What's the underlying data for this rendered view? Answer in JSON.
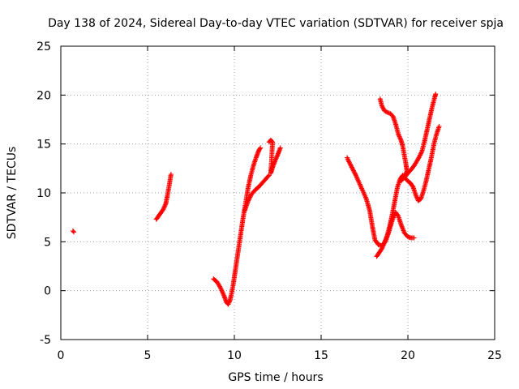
{
  "chart_data": {
    "type": "scatter",
    "title": "Day 138 of 2024, Sidereal Day-to-day VTEC variation (SDTVAR) for receiver spja",
    "xlabel": "GPS time / hours",
    "ylabel": "SDTVAR / TECUs",
    "xlim": [
      0,
      25
    ],
    "ylim": [
      -5,
      25
    ],
    "xticks": [
      0,
      5,
      10,
      15,
      20,
      25
    ],
    "yticks": [
      -5,
      0,
      5,
      10,
      15,
      20,
      25
    ],
    "grid": true,
    "marker": "plus",
    "color": "#ff0000",
    "series": [
      {
        "values": [
          [
            0.7,
            6.1
          ],
          [
            0.75,
            6.0
          ],
          [
            5.5,
            7.3
          ],
          [
            5.7,
            7.8
          ],
          [
            5.9,
            8.3
          ],
          [
            6.05,
            8.9
          ],
          [
            6.15,
            9.8
          ],
          [
            6.25,
            10.8
          ],
          [
            6.35,
            11.9
          ],
          [
            8.8,
            1.2
          ],
          [
            9.0,
            0.9
          ],
          [
            9.2,
            0.3
          ],
          [
            9.4,
            -0.5
          ],
          [
            9.55,
            -1.2
          ],
          [
            9.65,
            -1.4
          ],
          [
            9.75,
            -1.0
          ],
          [
            9.85,
            -0.2
          ],
          [
            9.95,
            0.8
          ],
          [
            10.05,
            2.0
          ],
          [
            10.2,
            3.8
          ],
          [
            10.35,
            5.6
          ],
          [
            10.5,
            7.4
          ],
          [
            10.65,
            9.0
          ],
          [
            10.8,
            10.6
          ],
          [
            10.95,
            11.8
          ],
          [
            11.1,
            12.8
          ],
          [
            11.25,
            13.6
          ],
          [
            11.4,
            14.3
          ],
          [
            11.5,
            14.6
          ],
          [
            10.6,
            8.2
          ],
          [
            10.8,
            9.2
          ],
          [
            11.0,
            9.9
          ],
          [
            11.2,
            10.3
          ],
          [
            11.4,
            10.6
          ],
          [
            11.6,
            11.0
          ],
          [
            11.8,
            11.4
          ],
          [
            12.0,
            11.8
          ],
          [
            12.0,
            15.2
          ],
          [
            12.1,
            15.4
          ],
          [
            12.2,
            15.2
          ],
          [
            12.1,
            12.0
          ],
          [
            12.2,
            12.6
          ],
          [
            12.35,
            13.3
          ],
          [
            12.5,
            13.9
          ],
          [
            12.65,
            14.6
          ],
          [
            16.5,
            13.6
          ],
          [
            16.6,
            13.2
          ],
          [
            16.8,
            12.5
          ],
          [
            17.0,
            11.8
          ],
          [
            17.2,
            11.0
          ],
          [
            17.4,
            10.2
          ],
          [
            17.6,
            9.4
          ],
          [
            17.8,
            8.2
          ],
          [
            17.95,
            6.6
          ],
          [
            18.1,
            5.2
          ],
          [
            18.3,
            4.7
          ],
          [
            18.5,
            4.6
          ],
          [
            18.7,
            5.0
          ],
          [
            18.9,
            6.0
          ],
          [
            19.1,
            7.2
          ],
          [
            19.3,
            8.0
          ],
          [
            19.45,
            7.6
          ],
          [
            19.6,
            6.8
          ],
          [
            19.8,
            5.9
          ],
          [
            20.0,
            5.5
          ],
          [
            20.2,
            5.4
          ],
          [
            20.35,
            5.4
          ],
          [
            18.2,
            3.5
          ],
          [
            18.35,
            3.9
          ],
          [
            18.5,
            4.3
          ],
          [
            18.65,
            4.9
          ],
          [
            18.8,
            5.6
          ],
          [
            18.95,
            6.6
          ],
          [
            19.1,
            7.8
          ],
          [
            19.25,
            9.2
          ],
          [
            19.4,
            10.6
          ],
          [
            19.55,
            11.4
          ],
          [
            19.7,
            11.8
          ],
          [
            19.85,
            11.5
          ],
          [
            20.0,
            11.2
          ],
          [
            20.15,
            11.0
          ],
          [
            20.3,
            10.6
          ],
          [
            20.45,
            9.8
          ],
          [
            20.6,
            9.2
          ],
          [
            20.75,
            9.4
          ],
          [
            20.9,
            10.2
          ],
          [
            21.05,
            11.2
          ],
          [
            21.2,
            12.4
          ],
          [
            21.35,
            13.6
          ],
          [
            21.5,
            15.0
          ],
          [
            21.65,
            16.0
          ],
          [
            21.8,
            16.8
          ],
          [
            18.4,
            19.6
          ],
          [
            18.5,
            18.9
          ],
          [
            18.65,
            18.4
          ],
          [
            18.85,
            18.2
          ],
          [
            19.0,
            18.1
          ],
          [
            19.15,
            17.8
          ],
          [
            19.3,
            17.0
          ],
          [
            19.45,
            16.0
          ],
          [
            19.6,
            15.4
          ],
          [
            19.7,
            14.8
          ],
          [
            19.8,
            13.8
          ],
          [
            19.9,
            12.8
          ],
          [
            19.95,
            12.2
          ],
          [
            19.6,
            11.2
          ],
          [
            19.8,
            11.6
          ],
          [
            20.0,
            12.0
          ],
          [
            20.2,
            12.4
          ],
          [
            20.4,
            12.9
          ],
          [
            20.6,
            13.5
          ],
          [
            20.8,
            14.2
          ],
          [
            20.95,
            15.2
          ],
          [
            21.1,
            16.4
          ],
          [
            21.25,
            17.6
          ],
          [
            21.4,
            18.8
          ],
          [
            21.55,
            19.8
          ],
          [
            21.6,
            20.1
          ]
        ]
      }
    ]
  }
}
